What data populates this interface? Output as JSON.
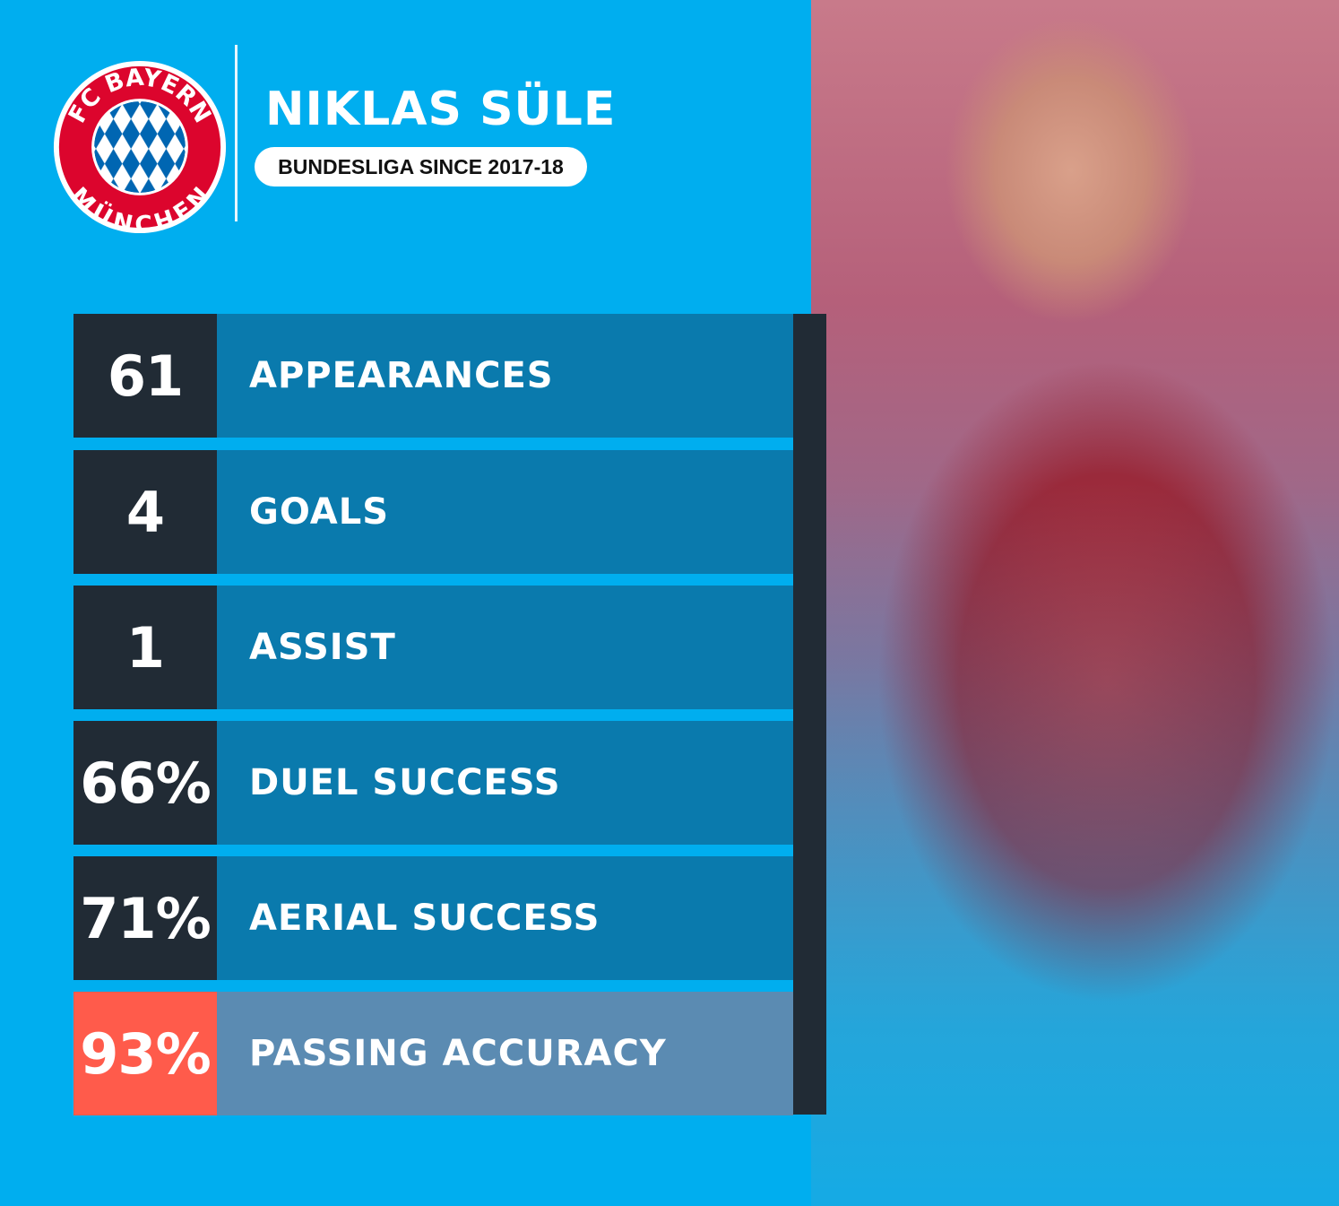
{
  "player": {
    "name": "NIKLAS SÜLE",
    "subtitle": "BUNDESLIGA SINCE 2017-18"
  },
  "logo": {
    "top_text": "FC BAYERN",
    "bottom_text": "MÜNCHEN",
    "colors": {
      "ring": "#dc052d",
      "blue": "#0066b2"
    }
  },
  "stats": [
    {
      "value": "61",
      "label": "APPEARANCES"
    },
    {
      "value": "4",
      "label": "GOALS"
    },
    {
      "value": "1",
      "label": "ASSIST"
    },
    {
      "value": "66%",
      "label": "DUEL SUCCESS"
    },
    {
      "value": "71%",
      "label": "AERIAL SUCCESS"
    },
    {
      "value": "93%",
      "label": "PASSING ACCURACY",
      "highlight": true
    }
  ],
  "colors": {
    "background": "#00aeef",
    "value_box": "#212b35",
    "label_box": "#0a7aad",
    "highlight_value": "#ff5b4b",
    "highlight_label": "#5b8bb2"
  }
}
